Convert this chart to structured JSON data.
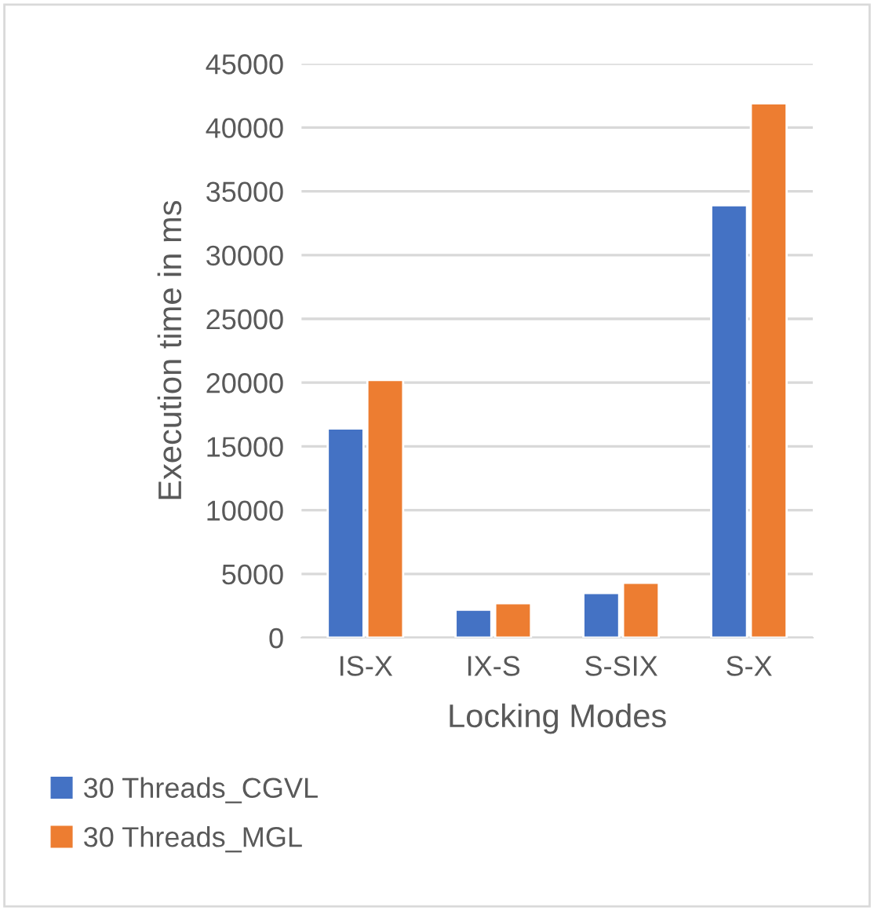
{
  "chart_data": {
    "type": "bar",
    "xlabel": "Locking Modes",
    "ylabel": "Execution time in ms",
    "categories": [
      "IS-X",
      "IX-S",
      "S-SIX",
      "S-X"
    ],
    "series": [
      {
        "name": "30 Threads_CGVL",
        "color": "#4472c4",
        "values": [
          16400,
          2200,
          3500,
          33900
        ]
      },
      {
        "name": "30 Threads_MGL",
        "color": "#ed7d31",
        "values": [
          20200,
          2700,
          4300,
          41900
        ]
      }
    ],
    "ylim": [
      0,
      45000
    ],
    "yticks": [
      0,
      5000,
      10000,
      15000,
      20000,
      25000,
      30000,
      35000,
      40000,
      45000
    ],
    "grid": "y",
    "legend": "bottom left"
  }
}
